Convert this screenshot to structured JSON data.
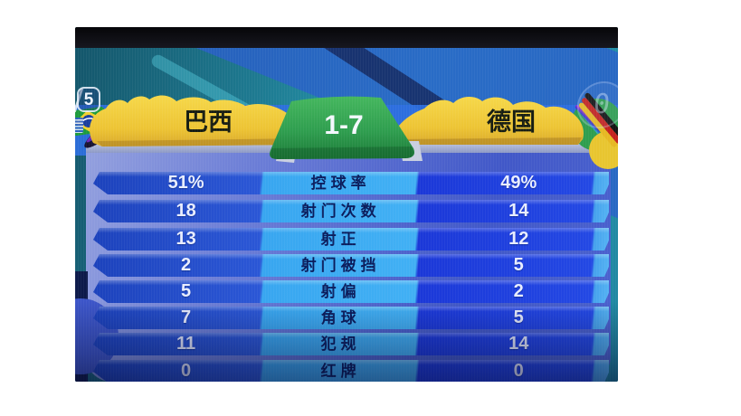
{
  "scoreboard": {
    "home_team": "巴西",
    "away_team": "德国",
    "score": "1-7",
    "channel_badge": "5",
    "ghost_digit": "0"
  },
  "stats": {
    "rows": [
      {
        "home": "51%",
        "label": "控球率",
        "away": "49%"
      },
      {
        "home": "18",
        "label": "射门次数",
        "away": "14"
      },
      {
        "home": "13",
        "label": "射正",
        "away": "12"
      },
      {
        "home": "2",
        "label": "射门被挡",
        "away": "5"
      },
      {
        "home": "5",
        "label": "射偏",
        "away": "2"
      },
      {
        "home": "7",
        "label": "角球",
        "away": "5"
      },
      {
        "home": "11",
        "label": "犯规",
        "away": "14"
      },
      {
        "home": "0",
        "label": "红牌",
        "away": "0"
      }
    ]
  },
  "icons": {
    "left_flag": "brazil-flag-icon",
    "right_flag": "germany-flag-feather-icon",
    "channel": "channel-badge",
    "watermark": "watermark-icon",
    "ghost": "ghost-clock-overlay"
  },
  "colors": {
    "banner_yellow": "#edc73a",
    "score_green": "#2f9e4f",
    "row_dark_blue": "#1c42bc",
    "row_light_blue": "#38a6f0",
    "row_value_blue": "#1b38d8",
    "label_navy": "#0a1c5c",
    "background_teal": "#1f7e96",
    "panel_periwinkle": "#6b7dd6"
  },
  "chart_data": {
    "type": "table",
    "title": "巴西 1-7 德国",
    "categories": [
      "控球率",
      "射门次数",
      "射正",
      "射门被挡",
      "射偏",
      "角球",
      "犯规",
      "红牌"
    ],
    "series": [
      {
        "name": "巴西",
        "values": [
          51,
          18,
          13,
          2,
          5,
          7,
          11,
          0
        ]
      },
      {
        "name": "德国",
        "values": [
          49,
          14,
          12,
          5,
          2,
          5,
          14,
          0
        ]
      }
    ],
    "units_note": "控球率 values are percentages (51% / 49%); all others are counts",
    "legend_position": "header-banner",
    "grid": false
  }
}
